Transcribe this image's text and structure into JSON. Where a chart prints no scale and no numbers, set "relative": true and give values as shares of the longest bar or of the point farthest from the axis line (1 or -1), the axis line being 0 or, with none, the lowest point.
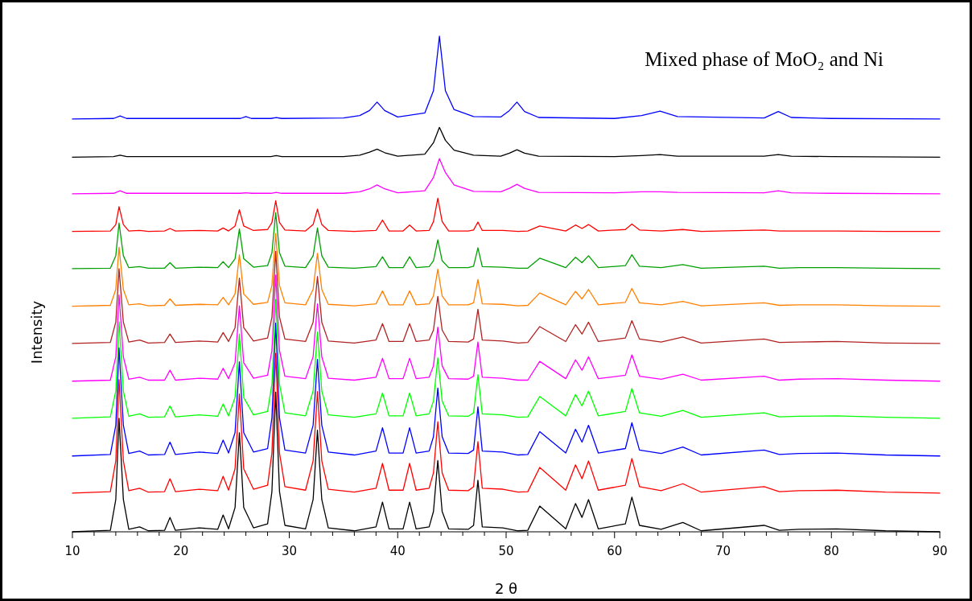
{
  "chart_data": {
    "type": "line",
    "title": "Mixed phase of MoO₂ and Ni",
    "xlabel": "2 θ",
    "ylabel": "Intensity",
    "relative": true,
    "grid": false,
    "marker": "none",
    "line_style": "solid",
    "xlim": [
      10,
      90
    ],
    "xticks": [
      10,
      {
        "value": 12,
        "label": null
      },
      {
        "value": 14,
        "label": null
      },
      {
        "value": 16,
        "label": null
      },
      {
        "value": 18,
        "label": null
      },
      20,
      {
        "value": 22,
        "label": null
      },
      {
        "value": 24,
        "label": null
      },
      {
        "value": 26,
        "label": null
      },
      {
        "value": 28,
        "label": null
      },
      30,
      {
        "value": 32,
        "label": null
      },
      {
        "value": 34,
        "label": null
      },
      {
        "value": 36,
        "label": null
      },
      {
        "value": 38,
        "label": null
      },
      40,
      {
        "value": 42,
        "label": null
      },
      {
        "value": 44,
        "label": null
      },
      {
        "value": 46,
        "label": null
      },
      {
        "value": 48,
        "label": null
      },
      50,
      {
        "value": 52,
        "label": null
      },
      {
        "value": 54,
        "label": null
      },
      {
        "value": 56,
        "label": null
      },
      {
        "value": 58,
        "label": null
      },
      60,
      {
        "value": 62,
        "label": null
      },
      {
        "value": 64,
        "label": null
      },
      {
        "value": 66,
        "label": null
      },
      {
        "value": 68,
        "label": null
      },
      70,
      {
        "value": 72,
        "label": null
      },
      {
        "value": 74,
        "label": null
      },
      {
        "value": 76,
        "label": null
      },
      {
        "value": 78,
        "label": null
      },
      80,
      {
        "value": 82,
        "label": null
      },
      {
        "value": 84,
        "label": null
      },
      {
        "value": 86,
        "label": null
      },
      {
        "value": 88,
        "label": null
      },
      90
    ],
    "x": [
      10,
      13.5,
      14.0,
      14.3,
      14.7,
      15.2,
      16.2,
      17,
      18.5,
      19,
      19.5,
      21.7,
      23.4,
      23.9,
      24.4,
      25.0,
      25.4,
      25.8,
      26.7,
      28.0,
      28.4,
      28.75,
      29.1,
      29.6,
      31.5,
      32.2,
      32.6,
      33.0,
      33.6,
      36,
      38.0,
      38.6,
      39.2,
      40.5,
      41.1,
      41.7,
      42.9,
      43.3,
      43.7,
      44.1,
      44.7,
      46.5,
      47.0,
      47.4,
      47.8,
      49.7,
      51.1,
      52,
      53.1,
      55.5,
      56.4,
      57.0,
      57.6,
      58.5,
      61.0,
      61.6,
      62.3,
      64.3,
      66.3,
      68,
      73.8,
      75.2,
      77,
      80.5,
      85,
      90
    ],
    "series": [
      {
        "color": "#000000",
        "values": [
          0,
          0.003,
          0.065,
          0.229,
          0.065,
          0.005,
          0.01,
          0.002,
          0.003,
          0.029,
          0.003,
          0.008,
          0.005,
          0.034,
          0.006,
          0.049,
          0.2,
          0.049,
          0.008,
          0.016,
          0.081,
          0.282,
          0.081,
          0.013,
          0.006,
          0.065,
          0.205,
          0.065,
          0.008,
          0.002,
          0.01,
          0.06,
          0.006,
          0.006,
          0.06,
          0.006,
          0.01,
          0.041,
          0.144,
          0.041,
          0.006,
          0.005,
          0.013,
          0.104,
          0.01,
          0.008,
          0.002,
          0.003,
          0.052,
          0.006,
          0.057,
          0.029,
          0.065,
          0.006,
          0.016,
          0.07,
          0.013,
          0.005,
          0.019,
          0.002,
          0.013,
          0.003,
          0.005,
          0.006,
          0.002,
          0
        ]
      },
      {
        "color": "#ff0000",
        "values": [
          0.078,
          0.081,
          0.143,
          0.307,
          0.143,
          0.083,
          0.088,
          0.08,
          0.081,
          0.107,
          0.081,
          0.086,
          0.083,
          0.112,
          0.084,
          0.127,
          0.278,
          0.127,
          0.086,
          0.094,
          0.159,
          0.36,
          0.159,
          0.091,
          0.084,
          0.143,
          0.283,
          0.143,
          0.086,
          0.08,
          0.088,
          0.138,
          0.084,
          0.084,
          0.138,
          0.084,
          0.088,
          0.119,
          0.222,
          0.119,
          0.084,
          0.083,
          0.091,
          0.182,
          0.088,
          0.086,
          0.08,
          0.081,
          0.13,
          0.084,
          0.135,
          0.107,
          0.143,
          0.084,
          0.094,
          0.148,
          0.091,
          0.083,
          0.097,
          0.08,
          0.091,
          0.081,
          0.083,
          0.084,
          0.08,
          0.078
        ]
      },
      {
        "color": "#0000ff",
        "values": [
          0.153,
          0.156,
          0.215,
          0.371,
          0.215,
          0.158,
          0.163,
          0.155,
          0.156,
          0.181,
          0.156,
          0.161,
          0.158,
          0.185,
          0.159,
          0.2,
          0.343,
          0.2,
          0.161,
          0.168,
          0.23,
          0.421,
          0.23,
          0.165,
          0.159,
          0.215,
          0.348,
          0.215,
          0.161,
          0.155,
          0.163,
          0.21,
          0.159,
          0.159,
          0.21,
          0.159,
          0.163,
          0.192,
          0.29,
          0.192,
          0.159,
          0.158,
          0.165,
          0.252,
          0.163,
          0.161,
          0.155,
          0.156,
          0.202,
          0.159,
          0.207,
          0.181,
          0.215,
          0.159,
          0.168,
          0.22,
          0.165,
          0.158,
          0.171,
          0.155,
          0.165,
          0.156,
          0.158,
          0.159,
          0.155,
          0.153
        ]
      },
      {
        "color": "#00ff00",
        "values": [
          0.229,
          0.232,
          0.284,
          0.424,
          0.284,
          0.233,
          0.238,
          0.231,
          0.232,
          0.254,
          0.232,
          0.236,
          0.233,
          0.258,
          0.234,
          0.271,
          0.399,
          0.271,
          0.236,
          0.243,
          0.298,
          0.469,
          0.298,
          0.24,
          0.234,
          0.284,
          0.403,
          0.284,
          0.236,
          0.231,
          0.238,
          0.28,
          0.234,
          0.234,
          0.28,
          0.234,
          0.238,
          0.264,
          0.351,
          0.264,
          0.234,
          0.233,
          0.24,
          0.317,
          0.238,
          0.236,
          0.231,
          0.232,
          0.273,
          0.234,
          0.277,
          0.254,
          0.284,
          0.234,
          0.243,
          0.289,
          0.24,
          0.233,
          0.245,
          0.231,
          0.24,
          0.232,
          0.233,
          0.234,
          0.231,
          0.229
        ]
      },
      {
        "color": "#ff00ff",
        "values": [
          0.304,
          0.306,
          0.353,
          0.478,
          0.353,
          0.308,
          0.312,
          0.306,
          0.306,
          0.326,
          0.306,
          0.31,
          0.308,
          0.33,
          0.309,
          0.341,
          0.456,
          0.341,
          0.31,
          0.316,
          0.366,
          0.518,
          0.366,
          0.314,
          0.309,
          0.353,
          0.46,
          0.353,
          0.31,
          0.306,
          0.312,
          0.35,
          0.309,
          0.309,
          0.35,
          0.309,
          0.312,
          0.335,
          0.413,
          0.335,
          0.309,
          0.308,
          0.314,
          0.383,
          0.312,
          0.31,
          0.306,
          0.306,
          0.344,
          0.309,
          0.347,
          0.326,
          0.353,
          0.309,
          0.316,
          0.357,
          0.314,
          0.308,
          0.318,
          0.306,
          0.314,
          0.306,
          0.308,
          0.309,
          0.306,
          0.304
        ]
      },
      {
        "color": "#b22222",
        "values": [
          0.38,
          0.382,
          0.423,
          0.531,
          0.423,
          0.383,
          0.387,
          0.381,
          0.382,
          0.399,
          0.382,
          0.385,
          0.383,
          0.402,
          0.384,
          0.412,
          0.512,
          0.412,
          0.385,
          0.391,
          0.433,
          0.566,
          0.433,
          0.389,
          0.384,
          0.423,
          0.515,
          0.423,
          0.385,
          0.381,
          0.387,
          0.42,
          0.384,
          0.384,
          0.42,
          0.384,
          0.387,
          0.407,
          0.475,
          0.407,
          0.384,
          0.383,
          0.389,
          0.449,
          0.387,
          0.385,
          0.381,
          0.382,
          0.414,
          0.384,
          0.418,
          0.399,
          0.423,
          0.384,
          0.391,
          0.426,
          0.389,
          0.383,
          0.393,
          0.381,
          0.389,
          0.382,
          0.383,
          0.384,
          0.381,
          0.38
        ]
      },
      {
        "color": "#ff8000",
        "values": [
          0.455,
          0.457,
          0.489,
          0.574,
          0.489,
          0.458,
          0.46,
          0.456,
          0.457,
          0.47,
          0.457,
          0.459,
          0.458,
          0.473,
          0.458,
          0.48,
          0.559,
          0.48,
          0.459,
          0.463,
          0.497,
          0.602,
          0.497,
          0.462,
          0.458,
          0.489,
          0.562,
          0.489,
          0.459,
          0.456,
          0.46,
          0.486,
          0.458,
          0.458,
          0.486,
          0.458,
          0.46,
          0.476,
          0.53,
          0.476,
          0.458,
          0.458,
          0.462,
          0.509,
          0.46,
          0.459,
          0.456,
          0.457,
          0.482,
          0.458,
          0.485,
          0.47,
          0.489,
          0.458,
          0.463,
          0.491,
          0.462,
          0.458,
          0.465,
          0.456,
          0.462,
          0.457,
          0.458,
          0.458,
          0.456,
          0.455
        ]
      },
      {
        "color": "#00a000",
        "values": [
          0.531,
          0.532,
          0.557,
          0.623,
          0.557,
          0.533,
          0.535,
          0.532,
          0.532,
          0.543,
          0.532,
          0.534,
          0.533,
          0.545,
          0.533,
          0.551,
          0.611,
          0.551,
          0.534,
          0.537,
          0.563,
          0.644,
          0.563,
          0.536,
          0.533,
          0.557,
          0.613,
          0.557,
          0.534,
          0.532,
          0.535,
          0.555,
          0.533,
          0.533,
          0.555,
          0.533,
          0.535,
          0.547,
          0.589,
          0.547,
          0.533,
          0.533,
          0.536,
          0.573,
          0.535,
          0.534,
          0.532,
          0.532,
          0.552,
          0.533,
          0.554,
          0.543,
          0.557,
          0.533,
          0.537,
          0.559,
          0.536,
          0.533,
          0.539,
          0.532,
          0.536,
          0.532,
          0.533,
          0.533,
          0.532,
          0.531
        ]
      },
      {
        "color": "#ff0000",
        "values": [
          0.606,
          0.607,
          0.62,
          0.656,
          0.62,
          0.607,
          0.608,
          0.606,
          0.607,
          0.612,
          0.607,
          0.608,
          0.607,
          0.613,
          0.607,
          0.617,
          0.65,
          0.617,
          0.608,
          0.61,
          0.624,
          0.668,
          0.624,
          0.609,
          0.607,
          0.62,
          0.651,
          0.62,
          0.608,
          0.606,
          0.608,
          0.629,
          0.607,
          0.607,
          0.619,
          0.607,
          0.608,
          0.626,
          0.673,
          0.626,
          0.607,
          0.607,
          0.609,
          0.625,
          0.608,
          0.608,
          0.606,
          0.607,
          0.617,
          0.607,
          0.619,
          0.612,
          0.62,
          0.607,
          0.61,
          0.621,
          0.609,
          0.607,
          0.61,
          0.606,
          0.609,
          0.607,
          0.607,
          0.607,
          0.606,
          0.606
        ]
      },
      {
        "color": "#ff00ff",
        "x": [
          10,
          13.8,
          14.4,
          15,
          25.5,
          26,
          26.5,
          28.3,
          28.8,
          29.3,
          35,
          36.5,
          37.4,
          38.1,
          38.8,
          40,
          42.5,
          43.3,
          43.85,
          44.4,
          45.2,
          47,
          49.5,
          50.3,
          51.0,
          51.7,
          53,
          60,
          62.5,
          64.2,
          65.8,
          73.8,
          75.1,
          76.3,
          80,
          90
        ],
        "values": [
          0.682,
          0.683,
          0.688,
          0.683,
          0.683,
          0.684,
          0.683,
          0.683,
          0.685,
          0.683,
          0.683,
          0.686,
          0.692,
          0.7,
          0.692,
          0.684,
          0.688,
          0.715,
          0.753,
          0.725,
          0.7,
          0.687,
          0.686,
          0.693,
          0.701,
          0.693,
          0.685,
          0.684,
          0.686,
          0.686,
          0.685,
          0.684,
          0.688,
          0.684,
          0.683,
          0.682
        ]
      },
      {
        "color": "#000000",
        "x": [
          10,
          13.8,
          14.4,
          15,
          25.5,
          26,
          26.5,
          28.3,
          28.8,
          29.3,
          35,
          36.5,
          37.4,
          38.1,
          38.8,
          40,
          42.5,
          43.3,
          43.85,
          44.4,
          45.2,
          47,
          49.5,
          50.3,
          51.0,
          51.7,
          53,
          60,
          62.5,
          64.2,
          65.8,
          73.8,
          75.1,
          76.3,
          80,
          90
        ],
        "values": [
          0.756,
          0.757,
          0.76,
          0.757,
          0.757,
          0.757,
          0.757,
          0.757,
          0.759,
          0.757,
          0.757,
          0.76,
          0.766,
          0.772,
          0.765,
          0.758,
          0.762,
          0.785,
          0.816,
          0.79,
          0.77,
          0.76,
          0.758,
          0.764,
          0.771,
          0.764,
          0.758,
          0.757,
          0.759,
          0.761,
          0.758,
          0.758,
          0.761,
          0.758,
          0.757,
          0.756
        ]
      },
      {
        "color": "#0000ff",
        "x": [
          10,
          13.8,
          14.4,
          15,
          25.5,
          26,
          26.5,
          28.3,
          28.8,
          29.3,
          35,
          36.5,
          37.4,
          38.1,
          38.8,
          40,
          42.5,
          43.3,
          43.85,
          44.4,
          45.2,
          47,
          49.5,
          50.3,
          51.0,
          51.7,
          53,
          60,
          62.5,
          64.2,
          65.8,
          73.8,
          75.1,
          76.3,
          80,
          90
        ],
        "values": [
          0.833,
          0.834,
          0.839,
          0.834,
          0.834,
          0.838,
          0.834,
          0.834,
          0.836,
          0.834,
          0.835,
          0.84,
          0.85,
          0.867,
          0.85,
          0.837,
          0.845,
          0.89,
          1.0,
          0.89,
          0.852,
          0.838,
          0.837,
          0.85,
          0.867,
          0.848,
          0.836,
          0.834,
          0.84,
          0.849,
          0.838,
          0.835,
          0.848,
          0.836,
          0.834,
          0.833
        ]
      }
    ]
  }
}
